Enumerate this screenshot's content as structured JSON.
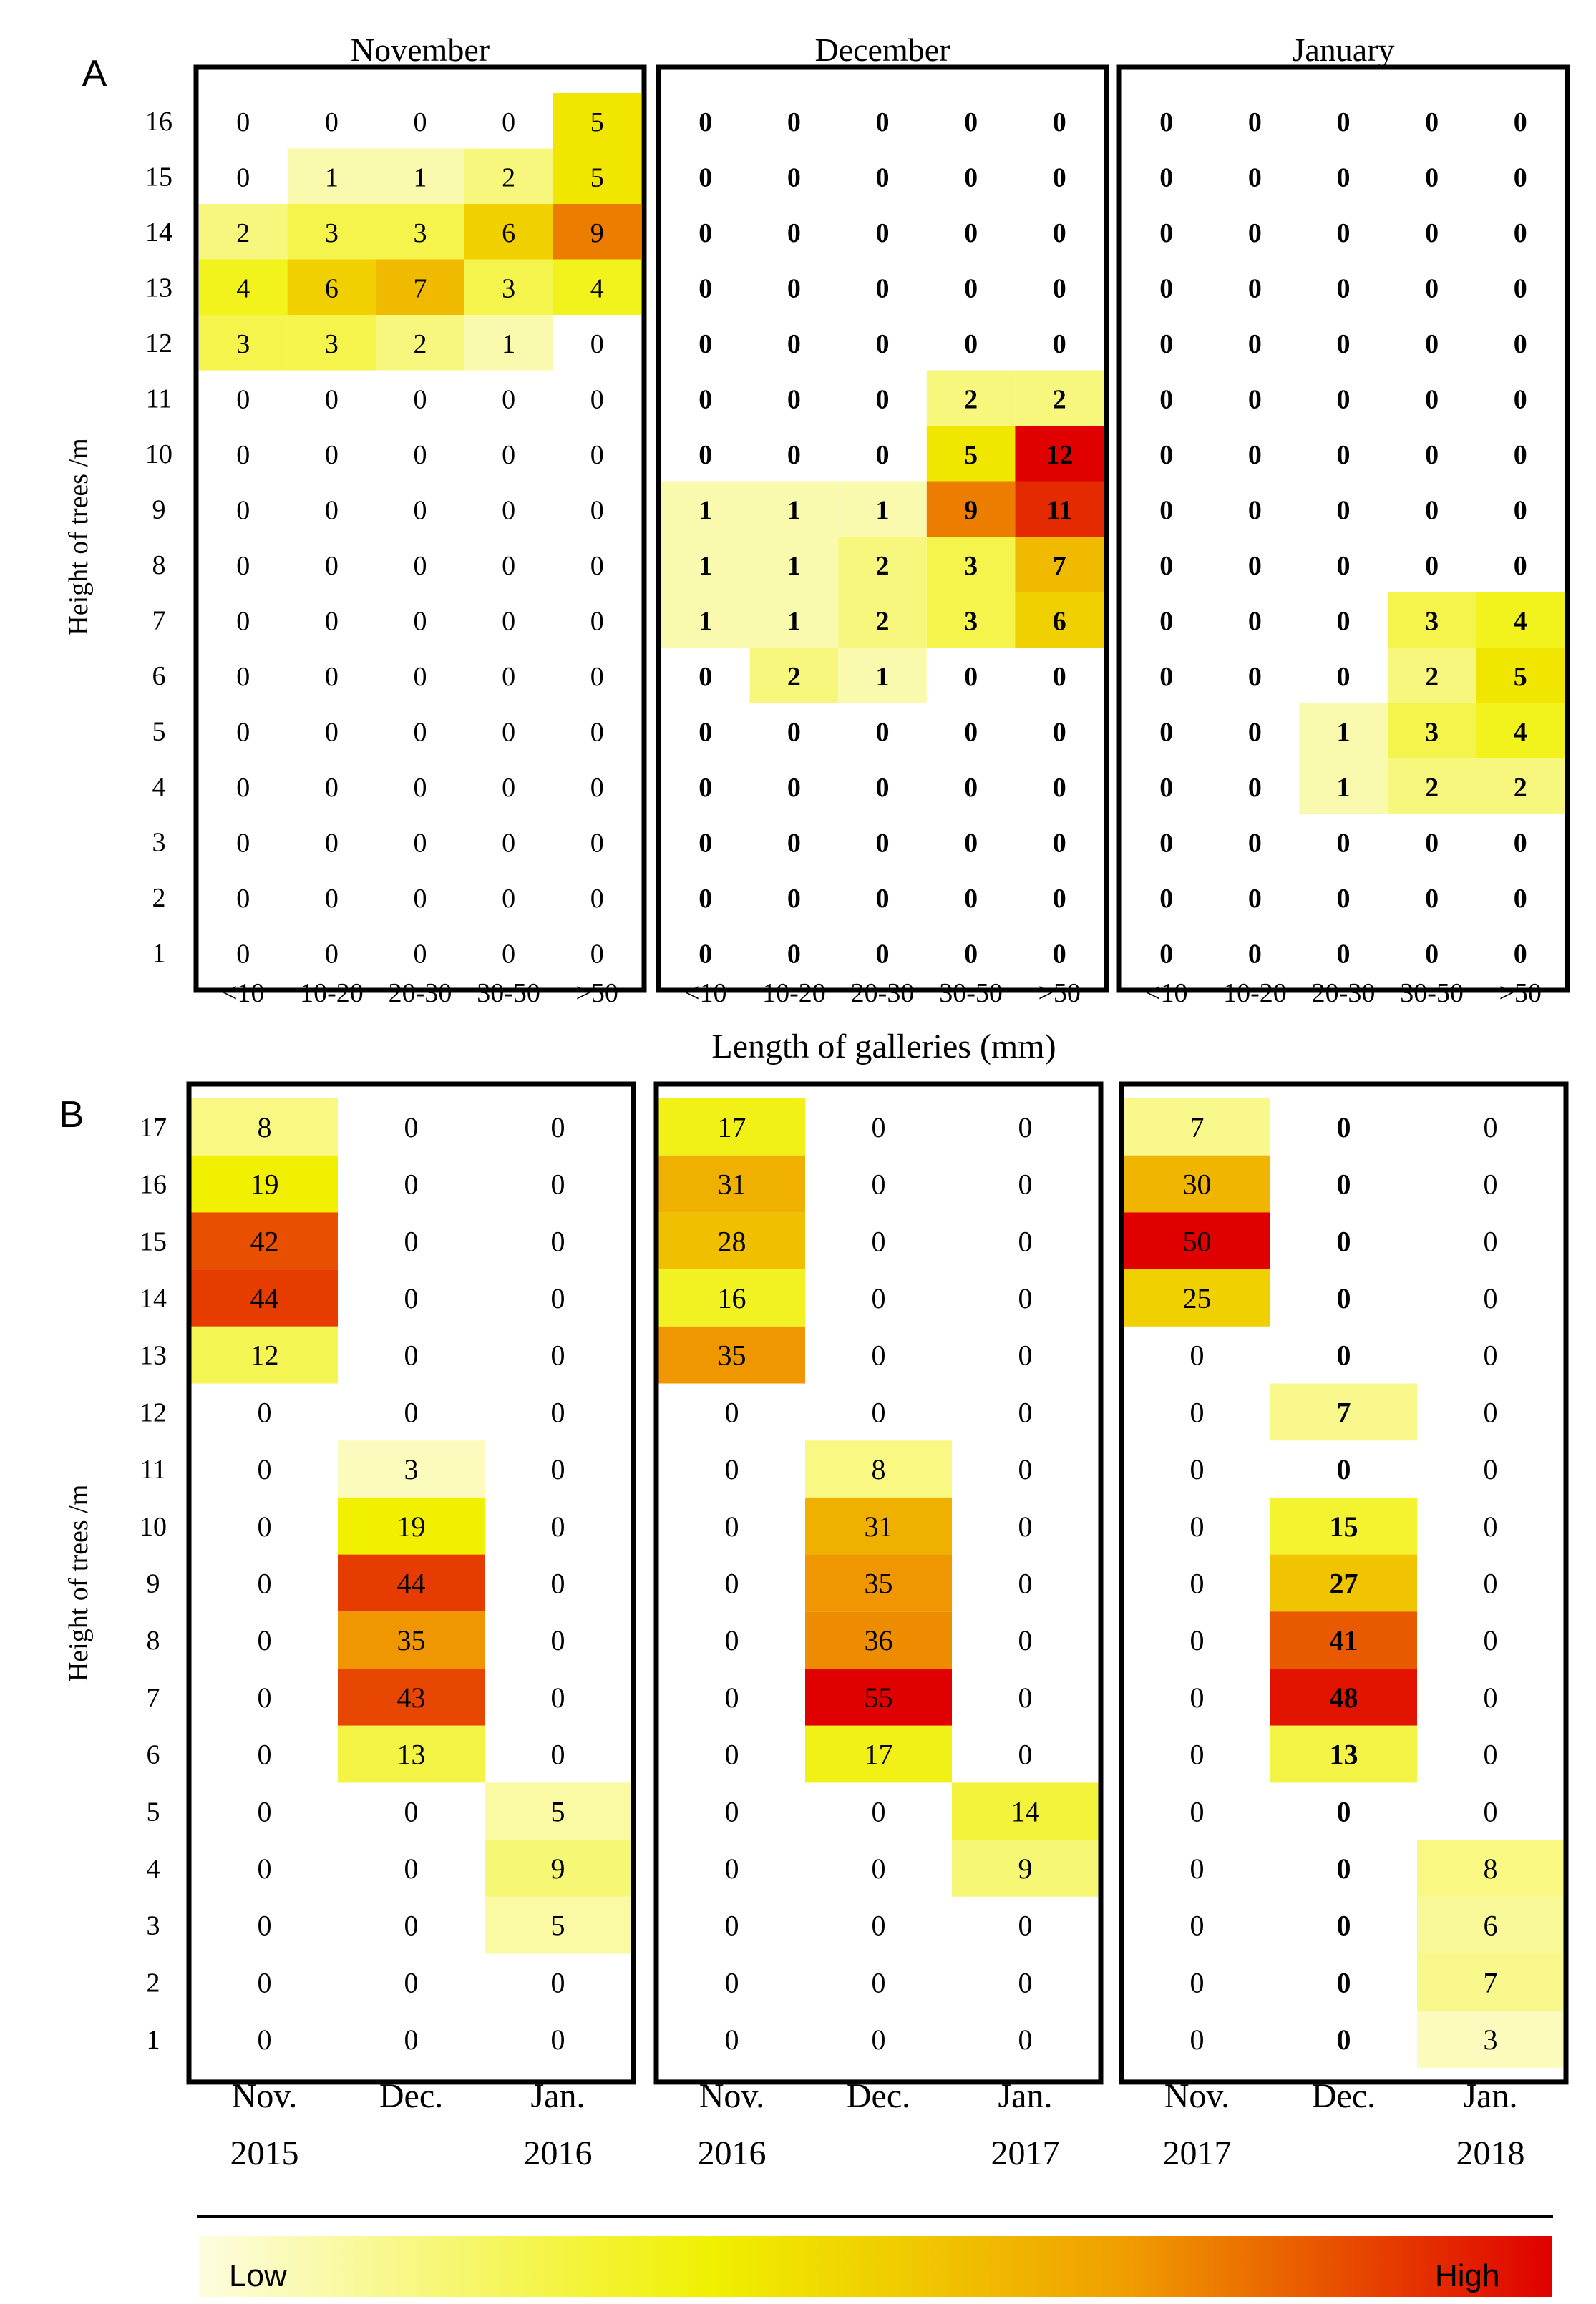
{
  "colors": {
    "low": "#fdfde0",
    "mid": "#f0f000",
    "orange": "#f0a000",
    "high": "#e00000",
    "frame": "#000000",
    "text": "#000000"
  },
  "colorbar": {
    "low_label": "Low",
    "high_label": "High"
  },
  "chart_data": [
    {
      "type": "heatmap",
      "panel_label": "A",
      "xlabel": "Length of galleries (mm)",
      "ylabel": "Height of trees /m",
      "categories": [
        "<10",
        "10-20",
        "20-30",
        "30-50",
        ">50"
      ],
      "y_categories": [
        16,
        15,
        14,
        13,
        12,
        11,
        10,
        9,
        8,
        7,
        6,
        5,
        4,
        3,
        2,
        1
      ],
      "subpanels": [
        {
          "title": "November",
          "values": [
            [
              0,
              0,
              0,
              0,
              5
            ],
            [
              0,
              1,
              1,
              2,
              5
            ],
            [
              2,
              3,
              3,
              6,
              9
            ],
            [
              4,
              6,
              7,
              3,
              4
            ],
            [
              3,
              3,
              2,
              1,
              0
            ],
            [
              0,
              0,
              0,
              0,
              0
            ],
            [
              0,
              0,
              0,
              0,
              0
            ],
            [
              0,
              0,
              0,
              0,
              0
            ],
            [
              0,
              0,
              0,
              0,
              0
            ],
            [
              0,
              0,
              0,
              0,
              0
            ],
            [
              0,
              0,
              0,
              0,
              0
            ],
            [
              0,
              0,
              0,
              0,
              0
            ],
            [
              0,
              0,
              0,
              0,
              0
            ],
            [
              0,
              0,
              0,
              0,
              0
            ],
            [
              0,
              0,
              0,
              0,
              0
            ],
            [
              0,
              0,
              0,
              0,
              0
            ]
          ]
        },
        {
          "title": "December",
          "values": [
            [
              0,
              0,
              0,
              0,
              0
            ],
            [
              0,
              0,
              0,
              0,
              0
            ],
            [
              0,
              0,
              0,
              0,
              0
            ],
            [
              0,
              0,
              0,
              0,
              0
            ],
            [
              0,
              0,
              0,
              0,
              0
            ],
            [
              0,
              0,
              0,
              2,
              2
            ],
            [
              0,
              0,
              0,
              5,
              12
            ],
            [
              1,
              1,
              1,
              9,
              11
            ],
            [
              1,
              1,
              2,
              3,
              7
            ],
            [
              1,
              1,
              2,
              3,
              6
            ],
            [
              0,
              2,
              1,
              0,
              0
            ],
            [
              0,
              0,
              0,
              0,
              0
            ],
            [
              0,
              0,
              0,
              0,
              0
            ],
            [
              0,
              0,
              0,
              0,
              0
            ],
            [
              0,
              0,
              0,
              0,
              0
            ],
            [
              0,
              0,
              0,
              0,
              0
            ]
          ]
        },
        {
          "title": "January",
          "values": [
            [
              0,
              0,
              0,
              0,
              0
            ],
            [
              0,
              0,
              0,
              0,
              0
            ],
            [
              0,
              0,
              0,
              0,
              0
            ],
            [
              0,
              0,
              0,
              0,
              0
            ],
            [
              0,
              0,
              0,
              0,
              0
            ],
            [
              0,
              0,
              0,
              0,
              0
            ],
            [
              0,
              0,
              0,
              0,
              0
            ],
            [
              0,
              0,
              0,
              0,
              0
            ],
            [
              0,
              0,
              0,
              0,
              0
            ],
            [
              0,
              0,
              0,
              3,
              4
            ],
            [
              0,
              0,
              0,
              2,
              5
            ],
            [
              0,
              0,
              1,
              3,
              4
            ],
            [
              0,
              0,
              1,
              2,
              2
            ],
            [
              0,
              0,
              0,
              0,
              0
            ],
            [
              0,
              0,
              0,
              0,
              0
            ],
            [
              0,
              0,
              0,
              0,
              0
            ]
          ]
        }
      ]
    },
    {
      "type": "heatmap",
      "panel_label": "B",
      "xlabel": "",
      "ylabel": "Height of trees /m",
      "y_categories": [
        17,
        16,
        15,
        14,
        13,
        12,
        11,
        10,
        9,
        8,
        7,
        6,
        5,
        4,
        3,
        2,
        1
      ],
      "subpanels": [
        {
          "categories": [
            "Nov.",
            "Dec.",
            "Jan."
          ],
          "years": [
            "2015",
            "",
            "2016"
          ],
          "values": [
            [
              8,
              0,
              0
            ],
            [
              19,
              0,
              0
            ],
            [
              42,
              0,
              0
            ],
            [
              44,
              0,
              0
            ],
            [
              12,
              0,
              0
            ],
            [
              0,
              0,
              0
            ],
            [
              0,
              3,
              0
            ],
            [
              0,
              19,
              0
            ],
            [
              0,
              44,
              0
            ],
            [
              0,
              35,
              0
            ],
            [
              0,
              43,
              0
            ],
            [
              0,
              13,
              0
            ],
            [
              0,
              0,
              5
            ],
            [
              0,
              0,
              9
            ],
            [
              0,
              0,
              5
            ],
            [
              0,
              0,
              0
            ],
            [
              0,
              0,
              0
            ]
          ]
        },
        {
          "categories": [
            "Nov.",
            "Dec.",
            "Jan."
          ],
          "years": [
            "2016",
            "",
            "2017"
          ],
          "values": [
            [
              17,
              0,
              0
            ],
            [
              31,
              0,
              0
            ],
            [
              28,
              0,
              0
            ],
            [
              16,
              0,
              0
            ],
            [
              35,
              0,
              0
            ],
            [
              0,
              0,
              0
            ],
            [
              0,
              8,
              0
            ],
            [
              0,
              31,
              0
            ],
            [
              0,
              35,
              0
            ],
            [
              0,
              36,
              0
            ],
            [
              0,
              55,
              0
            ],
            [
              0,
              17,
              0
            ],
            [
              0,
              0,
              14
            ],
            [
              0,
              0,
              9
            ],
            [
              0,
              0,
              0
            ],
            [
              0,
              0,
              0
            ],
            [
              0,
              0,
              0
            ]
          ]
        },
        {
          "categories": [
            "Nov.",
            "Dec.",
            "Jan."
          ],
          "years": [
            "2017",
            "",
            "2018"
          ],
          "values": [
            [
              7,
              0,
              0
            ],
            [
              30,
              0,
              0
            ],
            [
              50,
              0,
              0
            ],
            [
              25,
              0,
              0
            ],
            [
              0,
              0,
              0
            ],
            [
              0,
              7,
              0
            ],
            [
              0,
              0,
              0
            ],
            [
              0,
              15,
              0
            ],
            [
              0,
              27,
              0
            ],
            [
              0,
              41,
              0
            ],
            [
              0,
              48,
              0
            ],
            [
              0,
              13,
              0
            ],
            [
              0,
              0,
              0
            ],
            [
              0,
              0,
              8
            ],
            [
              0,
              0,
              6
            ],
            [
              0,
              0,
              7
            ],
            [
              0,
              0,
              3
            ]
          ]
        }
      ]
    }
  ]
}
